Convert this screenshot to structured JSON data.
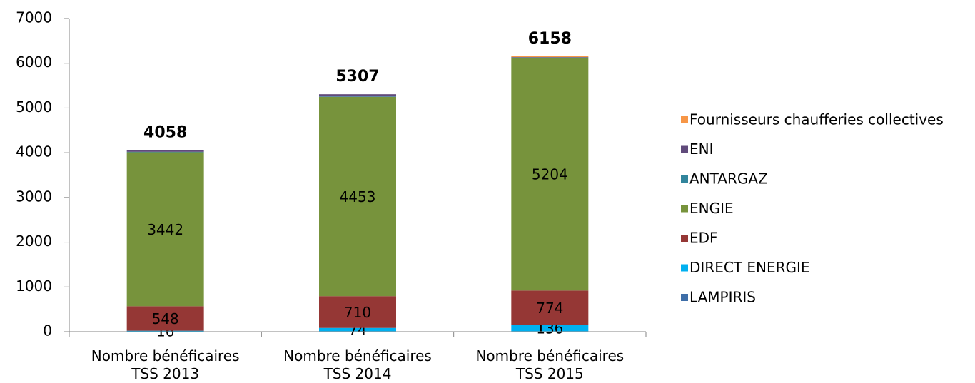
{
  "chart_data": {
    "type": "stacked_bar",
    "categories": [
      "Nombre bénéficaires\nTSS 2013",
      "Nombre bénéficaires\nTSS 2014",
      "Nombre bénéficaires\nTSS 2015"
    ],
    "series": [
      {
        "name": "LAMPIRIS",
        "color": "#3e6ea8",
        "values": [
          5,
          10,
          10
        ],
        "show_labels": false
      },
      {
        "name": "DIRECT ENERGIE",
        "color": "#00b0f0",
        "values": [
          16,
          74,
          136
        ],
        "show_labels": true
      },
      {
        "name": "EDF",
        "color": "#953735",
        "values": [
          548,
          710,
          774
        ],
        "show_labels": true
      },
      {
        "name": "ENGIE",
        "color": "#77933c",
        "values": [
          3442,
          4453,
          5204
        ],
        "show_labels": true
      },
      {
        "name": "ANTARGAZ",
        "color": "#31859c",
        "values": [
          10,
          10,
          5
        ],
        "show_labels": false
      },
      {
        "name": "ENI",
        "color": "#604a7b",
        "values": [
          37,
          50,
          9
        ],
        "show_labels": false
      },
      {
        "name": "Fournisseurs chaufferies collectives",
        "color": "#f79646",
        "values": [
          0,
          0,
          20
        ],
        "show_labels": false
      }
    ],
    "totals": [
      4058,
      5307,
      6158
    ],
    "ylim": [
      0,
      7000
    ],
    "yticks": [
      0,
      1000,
      2000,
      3000,
      4000,
      5000,
      6000,
      7000
    ],
    "legend": "right"
  }
}
